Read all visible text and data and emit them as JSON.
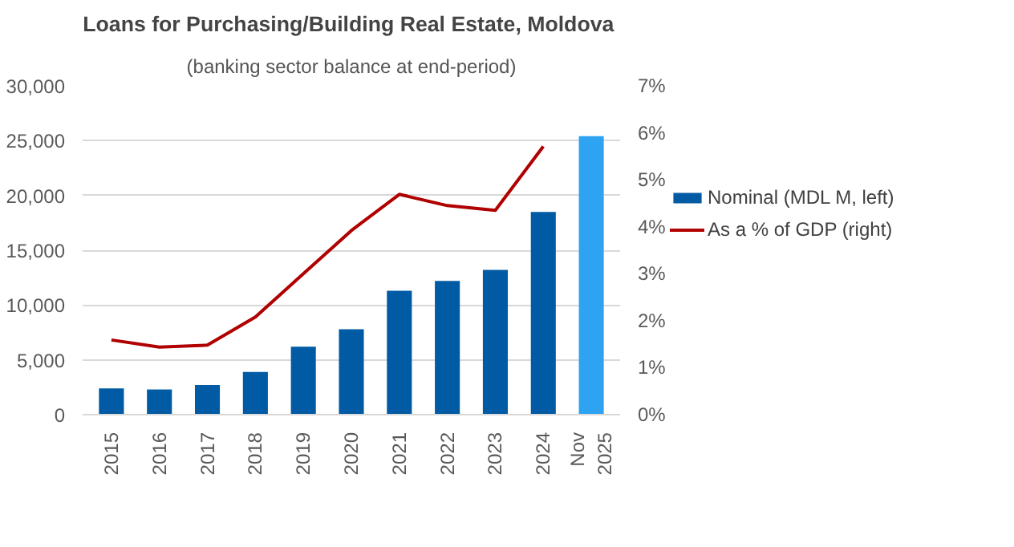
{
  "chart_data": {
    "type": "bar",
    "title": "Loans for Purchasing/Building  Real Estate, Moldova",
    "subtitle": "(banking sector balance at end-period)",
    "categories": [
      "2015",
      "2016",
      "2017",
      "2018",
      "2019",
      "2020",
      "2021",
      "2022",
      "2023",
      "2024",
      "Nov 2025"
    ],
    "series": [
      {
        "name": "Nominal (MDL M, left)",
        "color": "#005ba4",
        "colors": [
          "#005ba4",
          "#005ba4",
          "#005ba4",
          "#005ba4",
          "#005ba4",
          "#005ba4",
          "#005ba4",
          "#005ba4",
          "#005ba4",
          "#005ba4",
          "#2ea3f2"
        ],
        "values": [
          2400,
          2300,
          2700,
          3900,
          6200,
          7800,
          11300,
          12200,
          13200,
          18500,
          25400
        ]
      },
      {
        "name": "As a % of GDP (right)",
        "type": "line",
        "axis": "y2",
        "color": "#b00000",
        "values": [
          1.59,
          1.44,
          1.48,
          2.08,
          3.0,
          3.92,
          4.69,
          4.45,
          4.35,
          5.71,
          null
        ]
      }
    ],
    "ylim": [
      0,
      30000
    ],
    "yticks": [
      {
        "value": 0,
        "label": "0"
      },
      {
        "value": 5000,
        "label": "5,000"
      },
      {
        "value": 10000,
        "label": "10,000"
      },
      {
        "value": 15000,
        "label": "15,000"
      },
      {
        "value": 20000,
        "label": "20,000"
      },
      {
        "value": 25000,
        "label": "25,000"
      },
      {
        "value": 30000,
        "label": "30,000"
      }
    ],
    "y2lim": [
      0,
      7
    ],
    "y2ticks": [
      {
        "value": 0,
        "label": "0%"
      },
      {
        "value": 1,
        "label": "1%"
      },
      {
        "value": 2,
        "label": "2%"
      },
      {
        "value": 3,
        "label": "3%"
      },
      {
        "value": 4,
        "label": "4%"
      },
      {
        "value": 5,
        "label": "5%"
      },
      {
        "value": 6,
        "label": "6%"
      },
      {
        "value": 7,
        "label": "7%"
      }
    ],
    "grid": "y",
    "legend": "right",
    "marker": "none",
    "line_style": "solid"
  }
}
